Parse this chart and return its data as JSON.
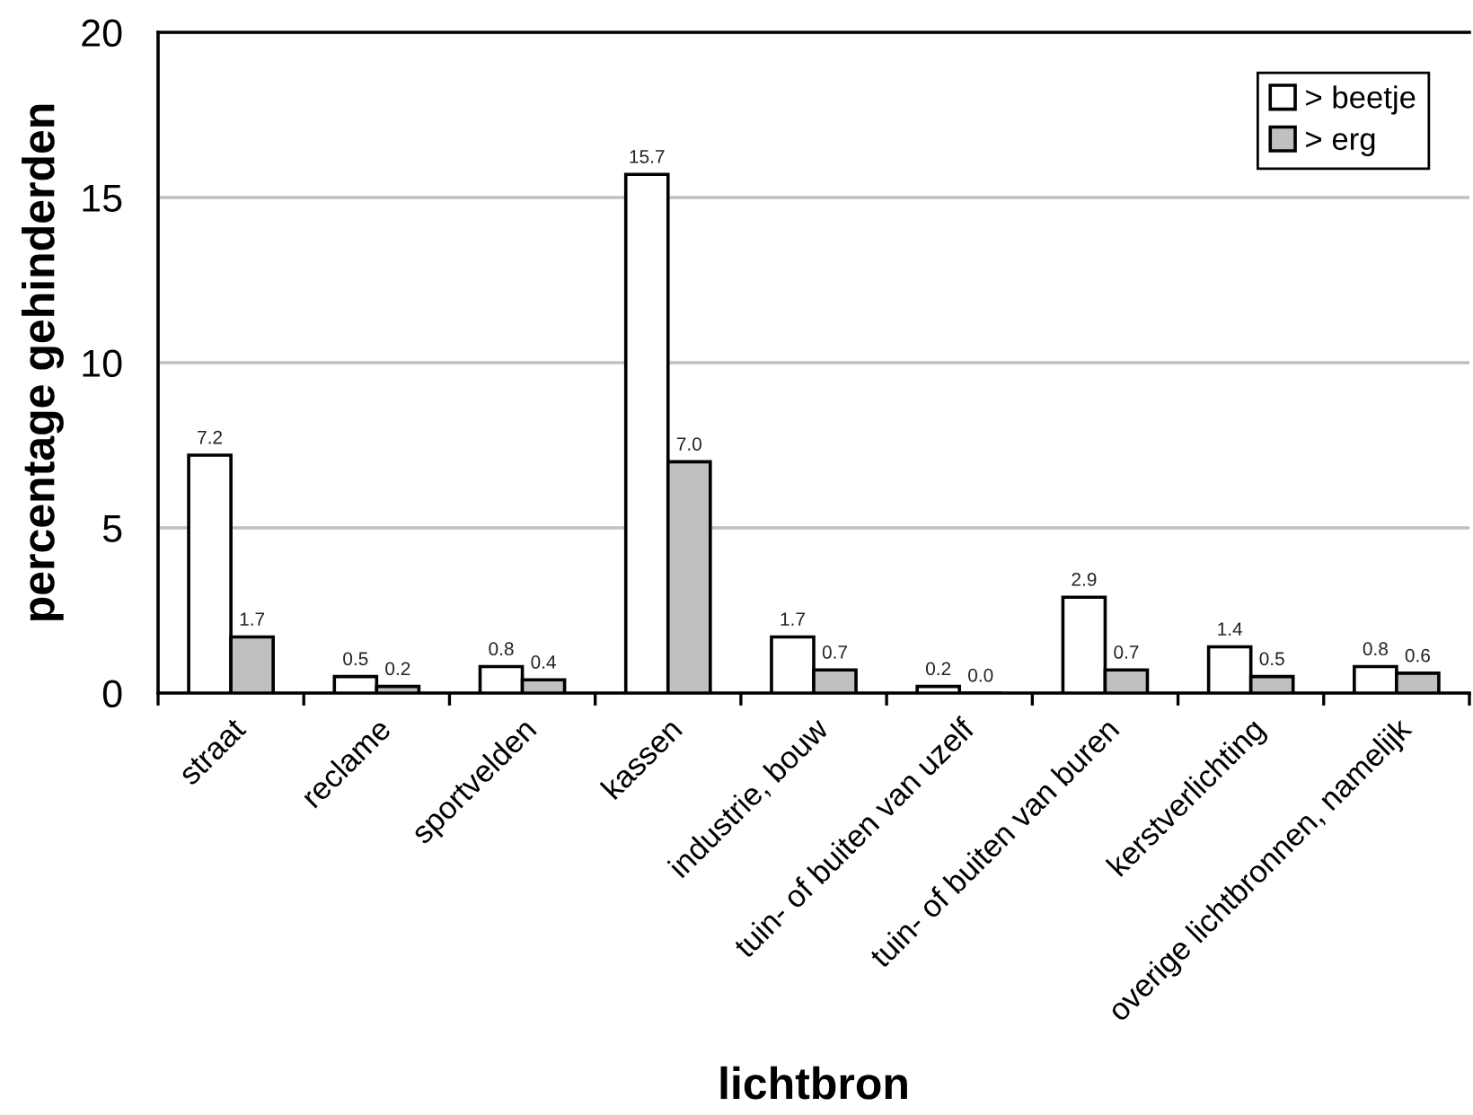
{
  "chart_data": {
    "type": "bar",
    "xlabel": "lichtbron",
    "ylabel": "percentage gehinderden",
    "categories": [
      "straat",
      "reclame",
      "sportvelden",
      "kassen",
      "industrie, bouw",
      "tuin- of buiten van uzelf",
      "tuin- of buiten van buren",
      "kerstverlichting",
      "overige lichtbronnen, namelijk"
    ],
    "series": [
      {
        "name": "> beetje",
        "color": "#ffffff",
        "values": [
          7.2,
          0.5,
          0.8,
          15.7,
          1.7,
          0.2,
          2.9,
          1.4,
          0.8
        ],
        "value_labels": [
          "7.2",
          "0.5",
          "0.8",
          "15.7",
          "1.7",
          "0.2",
          "2.9",
          "1.4",
          "0.8"
        ]
      },
      {
        "name": "> erg",
        "color": "#c0c0c0",
        "values": [
          1.7,
          0.2,
          0.4,
          7.0,
          0.7,
          0.0,
          0.7,
          0.5,
          0.6
        ],
        "value_labels": [
          "1.7",
          "0.2",
          "0.4",
          "7.0",
          "0.7",
          "0.0",
          "0.7",
          "0.5",
          "0.6"
        ]
      }
    ],
    "ylim": [
      0,
      20
    ],
    "yticks": [
      0,
      5,
      10,
      15,
      20
    ],
    "grid": "y",
    "legend": "top right"
  }
}
